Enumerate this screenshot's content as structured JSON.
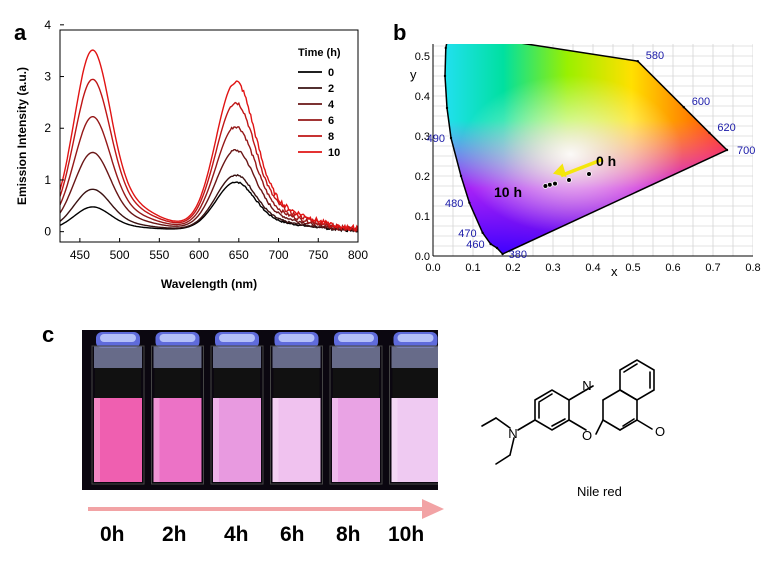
{
  "panels": {
    "a": "a",
    "b": "b",
    "c": "c"
  },
  "colors": {
    "axis": "#000000",
    "cie_axis": "#1a1aa8",
    "arrow_pink": "#f2a3a5",
    "arrow_yellow": "#f4e60c"
  },
  "panel_a": {
    "chart_data": {
      "type": "line",
      "xlabel": "Wavelength (nm)",
      "ylabel": "Emission Intensity (a.u.)",
      "xlim": [
        425,
        800
      ],
      "ylim": [
        -0.2,
        3.9
      ],
      "xticks": [
        450,
        500,
        550,
        600,
        650,
        700,
        750,
        800
      ],
      "yticks": [
        0,
        1,
        2,
        3,
        4
      ],
      "legend_title": "Time (h)",
      "legend_position": "top-right",
      "series": [
        {
          "name": "0",
          "color": "#000000",
          "peak1": 0.47,
          "peak2": 0.98
        },
        {
          "name": "2",
          "color": "#3a1212",
          "peak1": 0.82,
          "peak2": 1.12
        },
        {
          "name": "4",
          "color": "#6a1616",
          "peak1": 1.55,
          "peak2": 1.62
        },
        {
          "name": "6",
          "color": "#951818",
          "peak1": 2.26,
          "peak2": 2.1
        },
        {
          "name": "8",
          "color": "#bf1616",
          "peak1": 3.0,
          "peak2": 2.58
        },
        {
          "name": "10",
          "color": "#e11414",
          "peak1": 3.58,
          "peak2": 3.0
        }
      ],
      "peak_positions_nm": [
        465,
        645
      ]
    }
  },
  "panel_b": {
    "chart_data": {
      "type": "scatter",
      "xlabel": "x",
      "ylabel": "y",
      "xlim": [
        0.0,
        0.8
      ],
      "ylim": [
        0.0,
        0.55
      ],
      "xticks": [
        "0.0",
        "0.1",
        "0.2",
        "0.3",
        "0.4",
        "0.5",
        "0.6",
        "0.7",
        "0.8"
      ],
      "yticks": [
        "0.0",
        "0.1",
        "0.2",
        "0.3",
        "0.4",
        "0.5"
      ],
      "wavelength_labels": [
        {
          "label": "380",
          "x": 0.174,
          "y": 0.005
        },
        {
          "label": "460",
          "x": 0.144,
          "y": 0.03
        },
        {
          "label": "470",
          "x": 0.124,
          "y": 0.058
        },
        {
          "label": "480",
          "x": 0.091,
          "y": 0.133
        },
        {
          "label": "490",
          "x": 0.045,
          "y": 0.295
        },
        {
          "label": "580",
          "x": 0.512,
          "y": 0.487
        },
        {
          "label": "600",
          "x": 0.627,
          "y": 0.372
        },
        {
          "label": "620",
          "x": 0.691,
          "y": 0.308
        },
        {
          "label": "700",
          "x": 0.735,
          "y": 0.265
        }
      ],
      "points": [
        {
          "x": 0.39,
          "y": 0.205
        },
        {
          "x": 0.34,
          "y": 0.19
        },
        {
          "x": 0.305,
          "y": 0.181
        },
        {
          "x": 0.292,
          "y": 0.178
        },
        {
          "x": 0.281,
          "y": 0.175
        }
      ],
      "annotations": {
        "start": "0 h",
        "end": "10 h"
      }
    }
  },
  "panel_c": {
    "vial_colors": [
      "#ef5fb0",
      "#ec72c6",
      "#e89ae0",
      "#f0c2ef",
      "#e9a3e4",
      "#efcaf2"
    ],
    "time_labels": [
      "0h",
      "2h",
      "4h",
      "6h",
      "8h",
      "10h"
    ],
    "molecule_name": "Nile red"
  }
}
